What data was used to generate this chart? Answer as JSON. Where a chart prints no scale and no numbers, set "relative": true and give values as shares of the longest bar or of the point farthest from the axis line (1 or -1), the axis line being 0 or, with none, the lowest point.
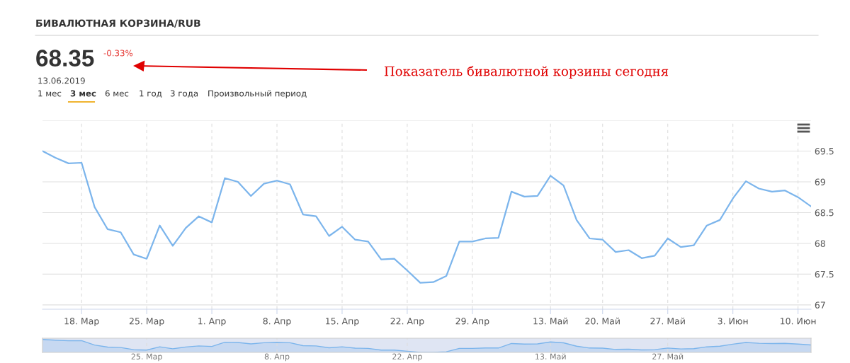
{
  "chart_data": [
    {
      "type": "line",
      "title": "БИВАЛЮТНАЯ КОРЗИНА/RUB",
      "annotations": [
        "68.35",
        "-0.33%",
        "13.06.2019",
        "1 мес",
        "3 мес",
        "6 мес",
        "1 год",
        "3 года",
        "Произвольный период",
        "Показатель бивалютной корзины сегодня"
      ],
      "categories": [
        null,
        null,
        null,
        "18. Мар",
        null,
        null,
        null,
        null,
        "25. Мар",
        null,
        null,
        null,
        null,
        "1. Апр",
        null,
        null,
        null,
        null,
        "8. Апр",
        null,
        null,
        null,
        null,
        "15. Апр",
        null,
        null,
        null,
        null,
        "22. Апр",
        null,
        null,
        null,
        null,
        "29. Апр",
        null,
        null,
        null,
        null,
        null,
        "13. Май",
        null,
        null,
        null,
        "20. Май",
        null,
        null,
        null,
        null,
        "27. Май",
        null,
        null,
        null,
        null,
        "3. Июн",
        null,
        null,
        null,
        null,
        "10. Июн",
        null
      ],
      "series": [
        {
          "color": "#7cb5ec",
          "values": [
            69.5,
            69.39,
            69.3,
            69.31,
            68.59,
            68.23,
            68.18,
            67.82,
            67.75,
            68.29,
            67.96,
            68.25,
            68.44,
            68.34,
            69.06,
            69.0,
            68.77,
            68.97,
            69.02,
            68.96,
            68.47,
            68.44,
            68.12,
            68.27,
            68.06,
            68.03,
            67.74,
            67.75,
            67.56,
            67.36,
            67.37,
            67.47,
            68.03,
            68.03,
            68.08,
            68.09,
            68.84,
            68.76,
            68.77,
            69.1,
            68.94,
            68.38,
            68.08,
            68.06,
            67.86,
            67.89,
            67.76,
            67.8,
            68.08,
            67.94,
            67.97,
            68.29,
            68.38,
            68.73,
            69.01,
            68.89,
            68.84,
            68.86,
            68.75,
            68.6
          ]
        }
      ],
      "ylim": [
        66.93,
        70.0
      ],
      "yticks": [
        67,
        67.5,
        68,
        68.5,
        69,
        69.5,
        {
          "value": 70,
          "label": null
        }
      ],
      "grid": true,
      "line_style": "solid",
      "marker": "none",
      "legend": false
    },
    {
      "type": "area",
      "relative": true,
      "categories": [
        null,
        null,
        null,
        null,
        null,
        null,
        null,
        null,
        "25. Мар",
        null,
        null,
        null,
        null,
        null,
        null,
        null,
        null,
        null,
        "8. Апр",
        null,
        null,
        null,
        null,
        null,
        null,
        null,
        null,
        null,
        "22. Апр",
        null,
        null,
        null,
        null,
        null,
        null,
        null,
        null,
        null,
        null,
        "13. Май",
        null,
        null,
        null,
        null,
        null,
        null,
        null,
        null,
        "27. Май",
        null,
        null,
        null,
        null,
        null,
        null,
        null,
        null,
        null,
        null,
        null
      ],
      "series": [
        {
          "color": "#7cb5ec",
          "values": [
            1.0,
            0.95,
            0.91,
            0.91,
            0.57,
            0.41,
            0.38,
            0.21,
            0.18,
            0.43,
            0.28,
            0.42,
            0.5,
            0.46,
            0.79,
            0.77,
            0.66,
            0.75,
            0.78,
            0.75,
            0.52,
            0.5,
            0.36,
            0.43,
            0.33,
            0.31,
            0.18,
            0.18,
            0.09,
            0.0,
            0.0,
            0.05,
            0.31,
            0.31,
            0.34,
            0.34,
            0.69,
            0.65,
            0.66,
            0.81,
            0.74,
            0.48,
            0.34,
            0.33,
            0.23,
            0.25,
            0.19,
            0.21,
            0.34,
            0.27,
            0.29,
            0.43,
            0.48,
            0.64,
            0.77,
            0.71,
            0.69,
            0.7,
            0.65,
            0.58
          ]
        }
      ],
      "grid": "x"
    }
  ]
}
